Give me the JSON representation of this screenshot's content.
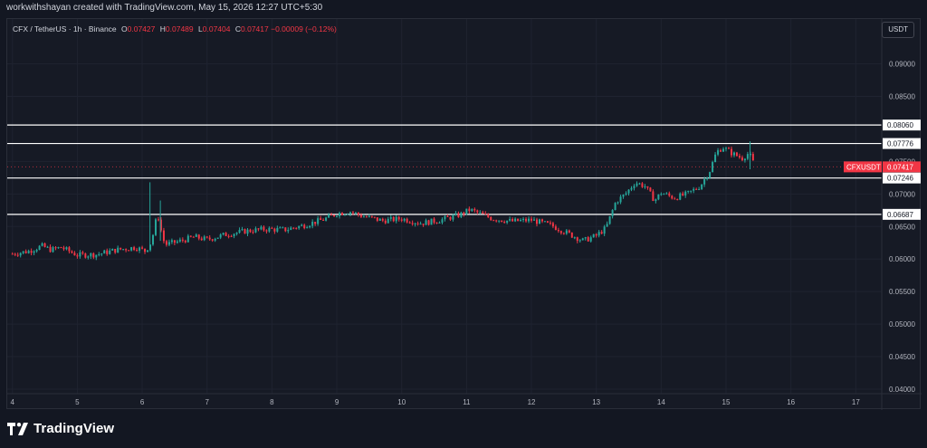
{
  "header": {
    "credit": "workwithshayan created with TradingView.com, May 15, 2026 12:27 UTC+5:30"
  },
  "legend": {
    "title": "CFX / TetherUS · 1h · Binance",
    "o_label": "O",
    "o_value": "0.07427",
    "h_label": "H",
    "h_value": "0.07489",
    "l_label": "L",
    "l_value": "0.07404",
    "c_label": "C",
    "c_value": "0.07417",
    "change": "−0.00009 (−0.12%)"
  },
  "currency_button": "USDT",
  "footer": {
    "logo_text": "TradingView",
    "logo_icon": "tradingview-logo-icon"
  },
  "colors": {
    "up": "#26a69a",
    "down": "#f23645",
    "hline": "#ffffff",
    "background": "#161a25",
    "grid": "#1f2330"
  },
  "chart_data": {
    "type": "candlestick",
    "symbol": "CFX / TetherUS",
    "interval": "1h",
    "exchange": "Binance",
    "x_ticks": [
      "4",
      "5",
      "6",
      "7",
      "8",
      "9",
      "10",
      "11",
      "12",
      "13",
      "14",
      "15",
      "16",
      "17"
    ],
    "y_ticks": [
      "0.09000",
      "0.08500",
      "0.07500",
      "0.07000",
      "0.06500",
      "0.06000",
      "0.05500",
      "0.05000",
      "0.04500",
      "0.04000"
    ],
    "ylim": [
      0.0393,
      0.0969
    ],
    "x_range_days": [
      3.92,
      17.4
    ],
    "grid": true,
    "horizontal_lines": [
      {
        "label": "0.08060",
        "value": 0.0806
      },
      {
        "label": "0.07776",
        "value": 0.07776
      },
      {
        "label": "0.07246",
        "value": 0.07246
      },
      {
        "label": "0.06687",
        "value": 0.06687
      }
    ],
    "last_price": {
      "symbol": "CFXUSDT",
      "label": "0.07417",
      "value": 0.07417
    },
    "price_path": [
      [
        4.0,
        0.0608
      ],
      [
        4.25,
        0.0612
      ],
      [
        4.45,
        0.062
      ],
      [
        4.6,
        0.0614
      ],
      [
        4.75,
        0.0618
      ],
      [
        5.0,
        0.0606
      ],
      [
        5.3,
        0.0607
      ],
      [
        5.6,
        0.0614
      ],
      [
        5.9,
        0.0618
      ],
      [
        6.05,
        0.0612
      ],
      [
        6.15,
        0.0628
      ],
      [
        6.2,
        0.0656
      ],
      [
        6.25,
        0.0664
      ],
      [
        6.3,
        0.064
      ],
      [
        6.35,
        0.0622
      ],
      [
        6.6,
        0.0628
      ],
      [
        6.8,
        0.0634
      ],
      [
        7.0,
        0.063
      ],
      [
        7.3,
        0.0638
      ],
      [
        7.6,
        0.0643
      ],
      [
        7.9,
        0.0646
      ],
      [
        8.2,
        0.0645
      ],
      [
        8.5,
        0.0652
      ],
      [
        8.8,
        0.0661
      ],
      [
        9.0,
        0.067
      ],
      [
        9.2,
        0.0673
      ],
      [
        9.4,
        0.0666
      ],
      [
        9.7,
        0.0659
      ],
      [
        10.0,
        0.0662
      ],
      [
        10.3,
        0.0655
      ],
      [
        10.6,
        0.066
      ],
      [
        10.9,
        0.0668
      ],
      [
        11.05,
        0.0676
      ],
      [
        11.2,
        0.067
      ],
      [
        11.4,
        0.0662
      ],
      [
        11.7,
        0.0658
      ],
      [
        12.0,
        0.066
      ],
      [
        12.3,
        0.0652
      ],
      [
        12.55,
        0.064
      ],
      [
        12.8,
        0.0628
      ],
      [
        13.0,
        0.0636
      ],
      [
        13.15,
        0.0648
      ],
      [
        13.3,
        0.0688
      ],
      [
        13.45,
        0.07
      ],
      [
        13.6,
        0.0718
      ],
      [
        13.75,
        0.0712
      ],
      [
        13.9,
        0.069
      ],
      [
        14.0,
        0.0702
      ],
      [
        14.2,
        0.0694
      ],
      [
        14.4,
        0.07
      ],
      [
        14.6,
        0.0712
      ],
      [
        14.75,
        0.0736
      ],
      [
        14.85,
        0.0764
      ],
      [
        14.95,
        0.0772
      ],
      [
        15.1,
        0.0762
      ],
      [
        15.25,
        0.0755
      ],
      [
        15.35,
        0.0763
      ],
      [
        15.45,
        0.0742
      ]
    ],
    "spikes": [
      {
        "day": 6.12,
        "high": 0.0718,
        "low": 0.0618
      },
      {
        "day": 6.28,
        "high": 0.069,
        "low": 0.0628
      },
      {
        "day": 15.37,
        "high": 0.0781,
        "low": 0.0738
      }
    ]
  }
}
